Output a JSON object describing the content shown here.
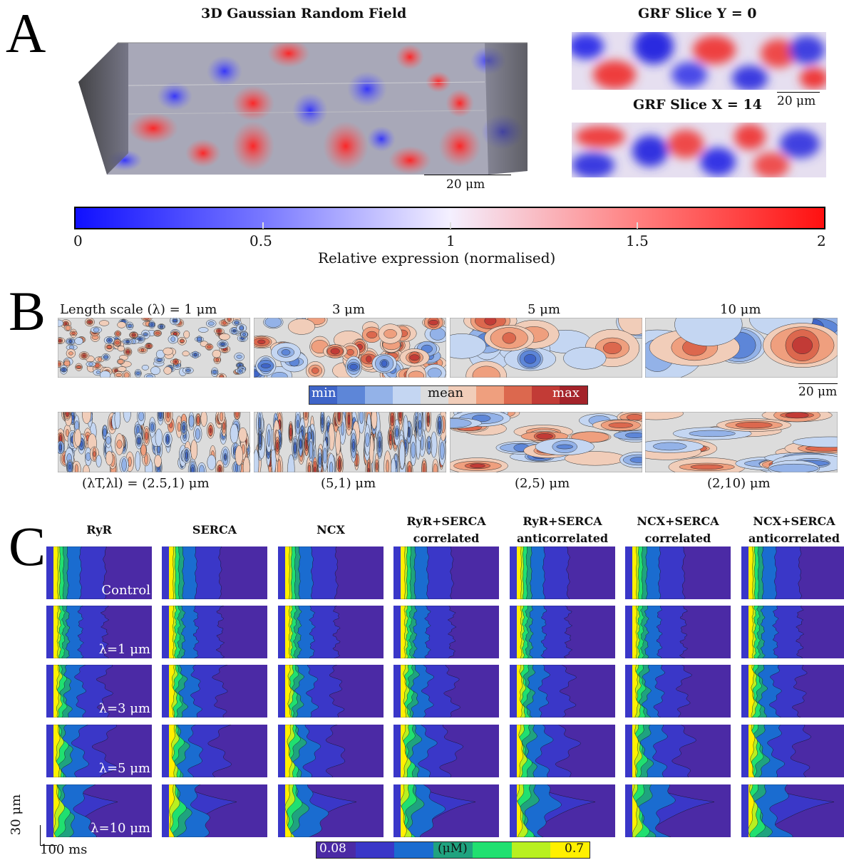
{
  "panelA": {
    "letter": "A",
    "title3d": "3D Gaussian Random Field",
    "sliceYTitle": "GRF Slice Y = 0",
    "sliceXTitle": "GRF Slice X = 14",
    "scale3d": "20 μm",
    "scaleSlice": "20 μm",
    "colorbar": {
      "ticks": [
        "0",
        "0.5",
        "1",
        "1.5",
        "2"
      ],
      "label": "Relative expression (normalised)",
      "colors": {
        "low": "#1a1aff",
        "mid": "#ffffff",
        "high": "#ff1a1a"
      }
    }
  },
  "panelB": {
    "letter": "B",
    "topLabels": [
      "Length scale (λ) = 1 μm",
      "3 μm",
      "5 μm",
      "10 μm"
    ],
    "bottomLabels": [
      "(λT,λl) = (2.5,1) μm",
      "(5,1) μm",
      "(2,5) μm",
      "(2,10) μm"
    ],
    "legend": {
      "min": "min",
      "mean": "mean",
      "max": "max"
    },
    "scale": "20 μm"
  },
  "panelC": {
    "letter": "C",
    "columns": [
      {
        "line1": "RyR",
        "line2": ""
      },
      {
        "line1": "SERCA",
        "line2": ""
      },
      {
        "line1": "NCX",
        "line2": ""
      },
      {
        "line1": "RyR+SERCA",
        "line2": "correlated"
      },
      {
        "line1": "RyR+SERCA",
        "line2": "anticorrelated"
      },
      {
        "line1": "NCX+SERCA",
        "line2": "correlated"
      },
      {
        "line1": "NCX+SERCA",
        "line2": "anticorrelated"
      }
    ],
    "rows": [
      "Control",
      "λ=1 μm",
      "λ=3 μm",
      "λ=5 μm",
      "λ=10 μm"
    ],
    "scaleY": "30 μm",
    "scaleX": "100 ms",
    "colorbar": {
      "low": "0.08",
      "unit": "(μM)",
      "high": "0.7"
    }
  }
}
